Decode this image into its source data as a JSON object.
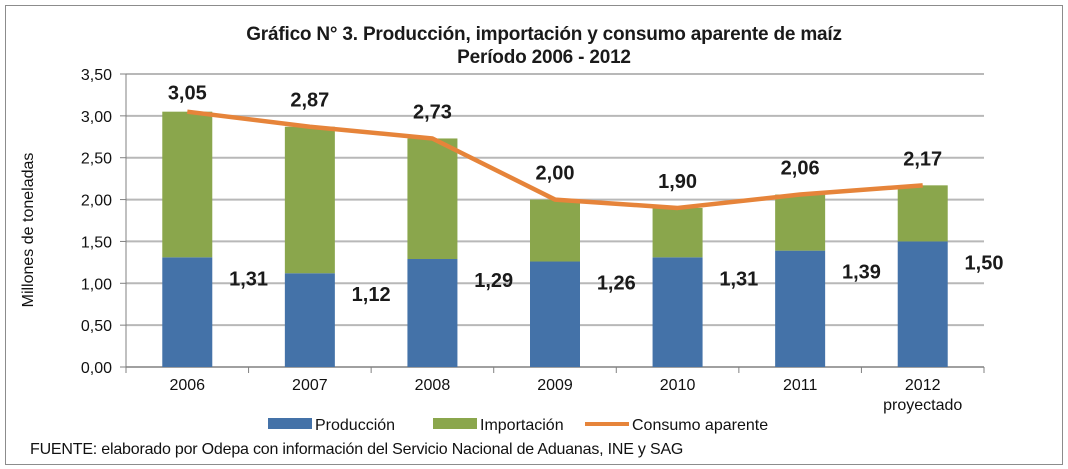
{
  "chart_data": {
    "type": "bar",
    "stacked": true,
    "title": "Gráfico N° 3. Producción, importación y consumo aparente de maíz",
    "subtitle": "Período 2006 - 2012",
    "xlabel": "",
    "ylabel": "Millones de toneladas",
    "ylim": [
      0,
      3.5
    ],
    "yticks": [
      "0,00",
      "0,50",
      "1,00",
      "1,50",
      "2,00",
      "2,50",
      "3,00",
      "3,50"
    ],
    "ytick_values": [
      0,
      0.5,
      1.0,
      1.5,
      2.0,
      2.5,
      3.0,
      3.5
    ],
    "grid": true,
    "categories": [
      "2006",
      "2007",
      "2008",
      "2009",
      "2010",
      "2011",
      "2012"
    ],
    "category_sublabels": [
      "",
      "",
      "",
      "",
      "",
      "",
      "proyectado"
    ],
    "series": [
      {
        "name": "Producción",
        "type": "bar",
        "color": "#4472a8",
        "values": [
          1.31,
          1.12,
          1.29,
          1.26,
          1.31,
          1.39,
          1.5
        ],
        "labels": [
          "1,31",
          "1,12",
          "1,29",
          "1,26",
          "1,31",
          "1,39",
          "1,50"
        ]
      },
      {
        "name": "Importación",
        "type": "bar",
        "color": "#8aa64c",
        "values": [
          1.74,
          1.75,
          1.44,
          0.74,
          0.59,
          0.67,
          0.67
        ]
      },
      {
        "name": "Consumo aparente",
        "type": "line",
        "color": "#e6843a",
        "values": [
          3.05,
          2.87,
          2.73,
          2.0,
          1.9,
          2.06,
          2.17
        ],
        "labels": [
          "3,05",
          "2,87",
          "2,73",
          "2,00",
          "1,90",
          "2,06",
          "2,17"
        ]
      }
    ],
    "legend": {
      "position": "bottom",
      "entries": [
        "Producción",
        "Importación",
        "Consumo aparente"
      ]
    },
    "source": "FUENTE: elaborado por Odepa con información del Servicio Nacional de Aduanas, INE y SAG"
  }
}
